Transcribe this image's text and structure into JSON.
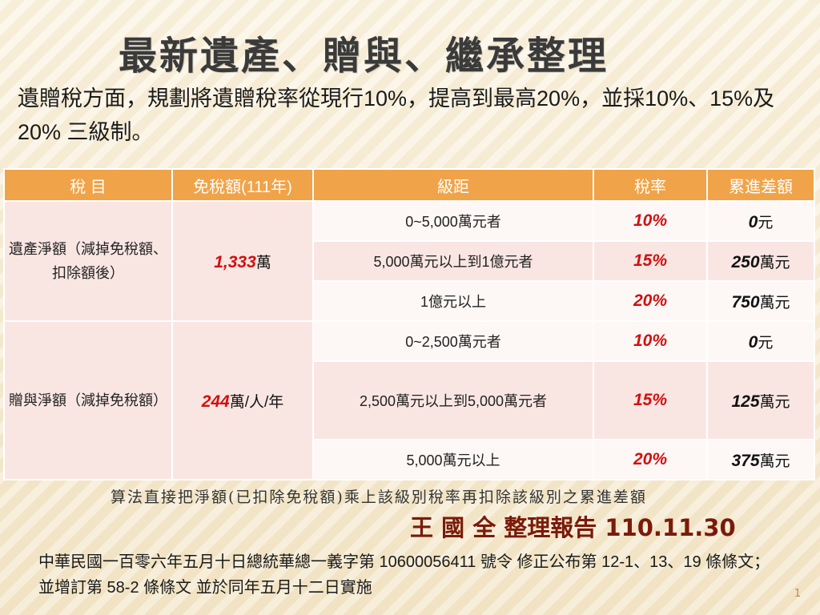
{
  "title": "最新遺產、贈與、繼承整理",
  "intro": "遺贈稅方面，規劃將遺贈稅率從現行10%，提高到最高20%，並採10%、15%及20% 三級制。",
  "table": {
    "headers": [
      "稅  目",
      "免稅額(111年)",
      "級距",
      "稅率",
      "累進差額"
    ],
    "groups": [
      {
        "category": "遺產淨額（減掉免稅額、扣除額後）",
        "exempt_value": "1,333",
        "exempt_unit": "萬",
        "rows": [
          {
            "band": "0~5,000萬元者",
            "rate": "10%",
            "diff_value": "0",
            "diff_unit": "元"
          },
          {
            "band": "5,000萬元以上到1億元者",
            "rate": "15%",
            "diff_value": "250",
            "diff_unit": "萬元"
          },
          {
            "band": "1億元以上",
            "rate": "20%",
            "diff_value": "750",
            "diff_unit": "萬元"
          }
        ]
      },
      {
        "category": "贈與淨額（減掉免稅額）",
        "exempt_value": "244",
        "exempt_unit": "萬/人/年",
        "rows": [
          {
            "band": "0~2,500萬元者",
            "rate": "10%",
            "diff_value": "0",
            "diff_unit": "元"
          },
          {
            "band": "2,500萬元以上到5,000萬元者",
            "rate": "15%",
            "diff_value": "125",
            "diff_unit": "萬元"
          },
          {
            "band": "5,000萬元以上",
            "rate": "20%",
            "diff_value": "375",
            "diff_unit": "萬元"
          }
        ]
      }
    ]
  },
  "note": "算法直接把淨額(已扣除免稅額)乘上該級別稅率再扣除該級別之累進差額",
  "author": "王 國 全 整理報告 110.11.30",
  "footer": "中華民國一百零六年五月十日總統華總一義字第 10600056411 號令 修正公布第 12-1、13、19 條條文；並增訂第 58-2 條條文  並於同年五月十二日實施",
  "page_number": "1",
  "colors": {
    "header_orange": "#f0a348",
    "highlight_red": "#d01010",
    "author_maroon": "#7a1a0a",
    "row_pink": "#f9e6e2",
    "row_light": "#fdf7f6"
  }
}
